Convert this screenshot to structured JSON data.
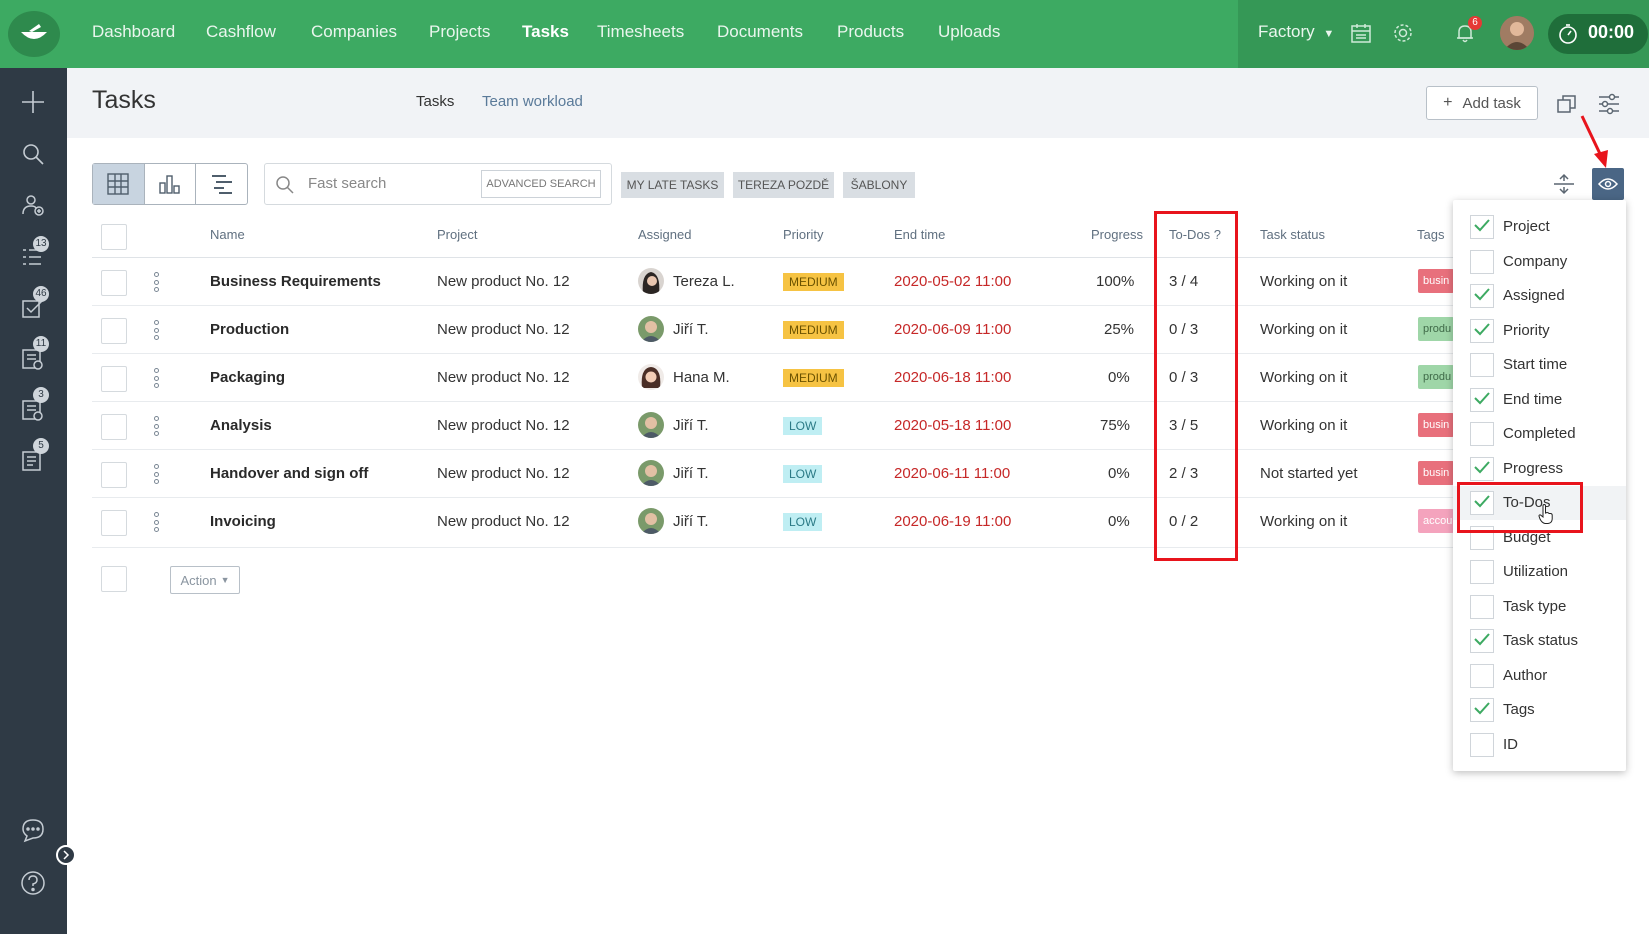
{
  "nav": {
    "items": [
      "Dashboard",
      "Cashflow",
      "Companies",
      "Projects",
      "Tasks",
      "Timesheets",
      "Documents",
      "Products",
      "Uploads"
    ],
    "active": "Tasks",
    "workspace": "Factory",
    "notifications_count": "6",
    "timer": "00:00"
  },
  "sidebar": {
    "badges": [
      "13",
      "46",
      "11",
      "3",
      "5"
    ]
  },
  "header": {
    "title": "Tasks",
    "tabs": [
      "Tasks",
      "Team workload"
    ],
    "add_task": "Add task"
  },
  "toolbar": {
    "search_placeholder": "Fast search",
    "advanced_search": "ADVANCED SEARCH",
    "chips": [
      "MY LATE TASKS",
      "TEREZA POZDĚ",
      "ŠABLONY"
    ]
  },
  "table": {
    "columns": {
      "name": "Name",
      "project": "Project",
      "assigned": "Assigned",
      "priority": "Priority",
      "end_time": "End time",
      "progress": "Progress",
      "todos": "To-Dos ?",
      "status": "Task status",
      "tags": "Tags"
    },
    "rows": [
      {
        "name": "Business Requirements",
        "project": "New product No. 12",
        "assigned": "Tereza L.",
        "priority": "MEDIUM",
        "end": "2020-05-02 11:00",
        "progress": "100%",
        "todos": "3 / 4",
        "status": "Working on it",
        "tag": "busin"
      },
      {
        "name": "Production",
        "project": "New product No. 12",
        "assigned": "Jiří T.",
        "priority": "MEDIUM",
        "end": "2020-06-09 11:00",
        "progress": "25%",
        "todos": "0 / 3",
        "status": "Working on it",
        "tag": "produ"
      },
      {
        "name": "Packaging",
        "project": "New product No. 12",
        "assigned": "Hana M.",
        "priority": "MEDIUM",
        "end": "2020-06-18 11:00",
        "progress": "0%",
        "todos": "0 / 3",
        "status": "Working on it",
        "tag": "produ"
      },
      {
        "name": "Analysis",
        "project": "New product No. 12",
        "assigned": "Jiří T.",
        "priority": "LOW",
        "end": "2020-05-18 11:00",
        "progress": "75%",
        "todos": "3 / 5",
        "status": "Working on it",
        "tag": "busin"
      },
      {
        "name": "Handover and sign off",
        "project": "New product No. 12",
        "assigned": "Jiří T.",
        "priority": "LOW",
        "end": "2020-06-11 11:00",
        "progress": "0%",
        "todos": "2 / 3",
        "status": "Not started yet",
        "tag": "busin"
      },
      {
        "name": "Invoicing",
        "project": "New product No. 12",
        "assigned": "Jiří T.",
        "priority": "LOW",
        "end": "2020-06-19 11:00",
        "progress": "0%",
        "todos": "0 / 2",
        "status": "Working on it",
        "tag": "accou"
      }
    ],
    "action_label": "Action"
  },
  "columns_menu": {
    "items": [
      {
        "label": "Project",
        "checked": true
      },
      {
        "label": "Company",
        "checked": false
      },
      {
        "label": "Assigned",
        "checked": true
      },
      {
        "label": "Priority",
        "checked": true
      },
      {
        "label": "Start time",
        "checked": false
      },
      {
        "label": "End time",
        "checked": true
      },
      {
        "label": "Completed",
        "checked": false
      },
      {
        "label": "Progress",
        "checked": true
      },
      {
        "label": "To-Dos",
        "checked": true
      },
      {
        "label": "Budget",
        "checked": false
      },
      {
        "label": "Utilization",
        "checked": false
      },
      {
        "label": "Task type",
        "checked": false
      },
      {
        "label": "Task status",
        "checked": true
      },
      {
        "label": "Author",
        "checked": false
      },
      {
        "label": "Tags",
        "checked": true
      },
      {
        "label": "ID",
        "checked": false
      }
    ]
  },
  "colors": {
    "brand": "#3daa62",
    "sidebar": "#2f3a45",
    "late": "#c62828",
    "highlight": "#e8141c"
  }
}
